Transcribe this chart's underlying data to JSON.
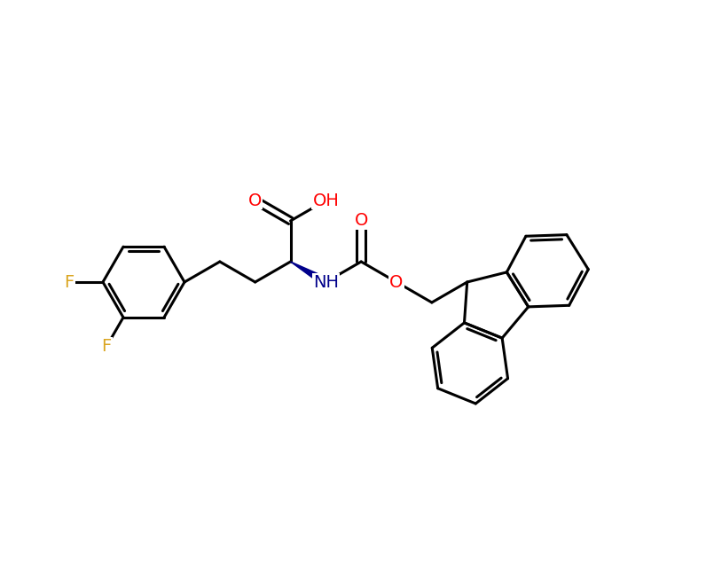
{
  "background_color": "#ffffff",
  "bond_color": "#000000",
  "bond_width": 2.2,
  "font_size": 14,
  "figsize": [
    7.96,
    6.55
  ],
  "dpi": 100,
  "atom_colors": {
    "F": "#DAA520",
    "O": "#FF0000",
    "N": "#00008B",
    "H": "#000000",
    "C": "#000000"
  }
}
